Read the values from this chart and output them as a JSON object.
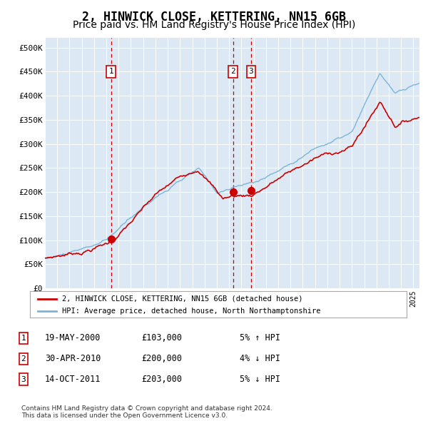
{
  "title": "2, HINWICK CLOSE, KETTERING, NN15 6GB",
  "subtitle": "Price paid vs. HM Land Registry's House Price Index (HPI)",
  "title_fontsize": 12,
  "subtitle_fontsize": 10,
  "background_color": "#dce9f5",
  "plot_bg_color": "#dce9f5",
  "fig_bg_color": "#ffffff",
  "ylim": [
    0,
    520000
  ],
  "yticks": [
    0,
    50000,
    100000,
    150000,
    200000,
    250000,
    300000,
    350000,
    400000,
    450000,
    500000
  ],
  "ytick_labels": [
    "£0",
    "£50K",
    "£100K",
    "£150K",
    "£200K",
    "£250K",
    "£300K",
    "£350K",
    "£400K",
    "£450K",
    "£500K"
  ],
  "hpi_color": "#7ab5d8",
  "price_color": "#cc0000",
  "marker_color": "#cc0000",
  "grid_color": "#ffffff",
  "vline_color": "#cc0000",
  "sale_dates": [
    2000.38,
    2010.33,
    2011.79
  ],
  "sale_prices": [
    103000,
    200000,
    203000
  ],
  "sale_labels": [
    "1",
    "2",
    "3"
  ],
  "legend_house_label": "2, HINWICK CLOSE, KETTERING, NN15 6GB (detached house)",
  "legend_hpi_label": "HPI: Average price, detached house, North Northamptonshire",
  "table_rows": [
    [
      "1",
      "19-MAY-2000",
      "£103,000",
      "5% ↑ HPI"
    ],
    [
      "2",
      "30-APR-2010",
      "£200,000",
      "4% ↓ HPI"
    ],
    [
      "3",
      "14-OCT-2011",
      "£203,000",
      "5% ↓ HPI"
    ]
  ],
  "footnote": "Contains HM Land Registry data © Crown copyright and database right 2024.\nThis data is licensed under the Open Government Licence v3.0.",
  "xmin": 1995.0,
  "xmax": 2025.5
}
